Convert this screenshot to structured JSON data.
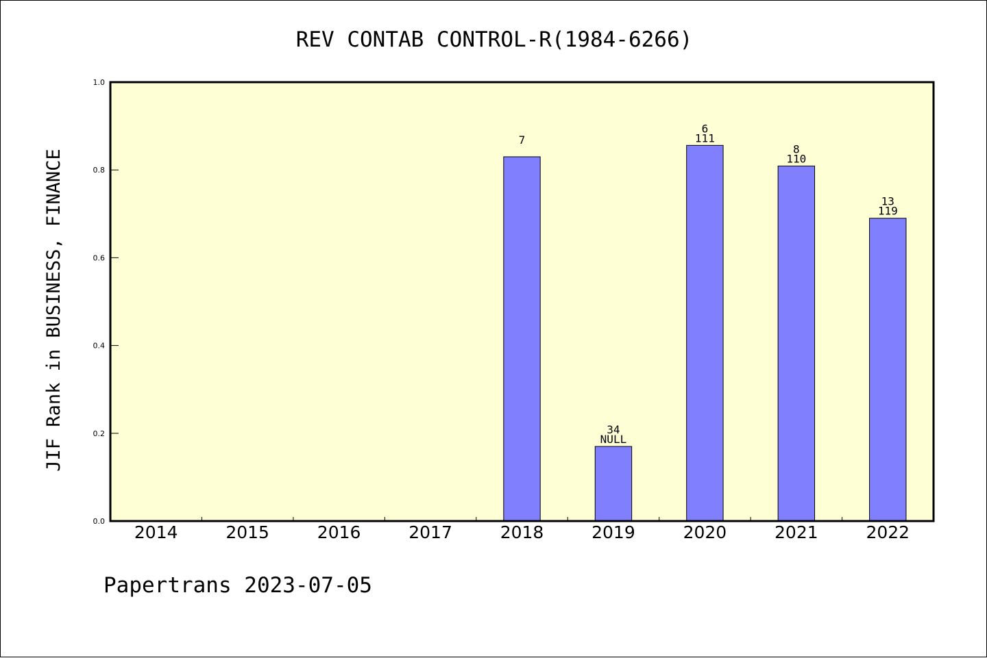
{
  "chart_data": {
    "type": "bar",
    "title": "REV CONTAB CONTROL-R(1984-6266)",
    "ylabel": "JIF Rank in BUSINESS, FINANCE",
    "xlabel": "",
    "categories": [
      "2014",
      "2015",
      "2016",
      "2017",
      "2018",
      "2019",
      "2020",
      "2021",
      "2022"
    ],
    "values": [
      null,
      null,
      null,
      null,
      0.83,
      0.17,
      0.856,
      0.809,
      0.69
    ],
    "bar_labels_top": [
      "",
      "",
      "",
      "",
      "7",
      "34",
      "6",
      "8",
      "13"
    ],
    "bar_labels_bottom": [
      "",
      "",
      "",
      "",
      "",
      "NULL",
      "111",
      "110",
      "119"
    ],
    "ylim": [
      0,
      1.0
    ],
    "yticks": [
      "0.0",
      "0.2",
      "0.4",
      "0.6",
      "0.8",
      "1.0"
    ],
    "ytick_values": [
      0,
      0.2,
      0.4,
      0.6,
      0.8,
      1.0
    ],
    "grid": false,
    "plot_background": "#ffffd6",
    "bar_color": "#8080ff",
    "footer": "Papertrans 2023-07-05"
  }
}
